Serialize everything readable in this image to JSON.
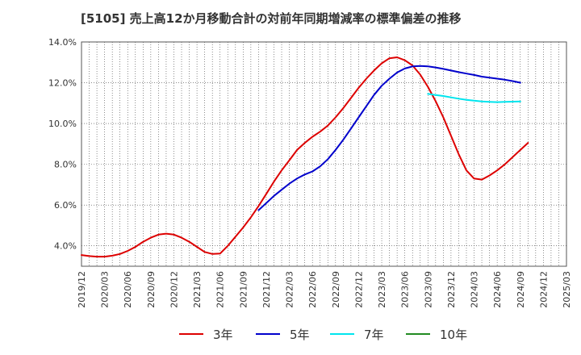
{
  "chart_data": {
    "type": "line",
    "title": "[5105]  売上高12か月移動合計の対前年同期増減率の標準偏差の推移",
    "xlabel": "",
    "ylabel": "",
    "y_tick_labels": [
      "4.0%",
      "6.0%",
      "8.0%",
      "10.0%",
      "12.0%",
      "14.0%"
    ],
    "y_ticks": [
      4,
      6,
      8,
      10,
      12,
      14
    ],
    "ylim": [
      3.0,
      14.0
    ],
    "x_tick_labels": [
      "2019/12",
      "2020/03",
      "2020/06",
      "2020/09",
      "2020/12",
      "2021/03",
      "2021/06",
      "2021/09",
      "2021/12",
      "2022/03",
      "2022/06",
      "2022/09",
      "2022/12",
      "2023/03",
      "2023/06",
      "2023/09",
      "2023/12",
      "2024/03",
      "2024/06",
      "2024/09",
      "2024/12",
      "2025/03"
    ],
    "x_range": [
      "2019/12",
      "2025/03"
    ],
    "grid": true,
    "legend_position": "bottom",
    "series": [
      {
        "name": "3年",
        "color": "#dd0000",
        "points": [
          [
            "2019/12",
            3.55
          ],
          [
            "2020/01",
            3.5
          ],
          [
            "2020/02",
            3.47
          ],
          [
            "2020/03",
            3.47
          ],
          [
            "2020/04",
            3.52
          ],
          [
            "2020/05",
            3.6
          ],
          [
            "2020/06",
            3.75
          ],
          [
            "2020/07",
            3.95
          ],
          [
            "2020/08",
            4.2
          ],
          [
            "2020/09",
            4.4
          ],
          [
            "2020/10",
            4.55
          ],
          [
            "2020/11",
            4.6
          ],
          [
            "2020/12",
            4.55
          ],
          [
            "2021/01",
            4.4
          ],
          [
            "2021/02",
            4.2
          ],
          [
            "2021/03",
            3.95
          ],
          [
            "2021/04",
            3.7
          ],
          [
            "2021/05",
            3.6
          ],
          [
            "2021/06",
            3.62
          ],
          [
            "2021/07",
            4.0
          ],
          [
            "2021/08",
            4.45
          ],
          [
            "2021/09",
            4.9
          ],
          [
            "2021/10",
            5.4
          ],
          [
            "2021/11",
            5.95
          ],
          [
            "2021/12",
            6.55
          ],
          [
            "2022/01",
            7.15
          ],
          [
            "2022/02",
            7.7
          ],
          [
            "2022/03",
            8.2
          ],
          [
            "2022/04",
            8.7
          ],
          [
            "2022/05",
            9.05
          ],
          [
            "2022/06",
            9.35
          ],
          [
            "2022/07",
            9.6
          ],
          [
            "2022/08",
            9.9
          ],
          [
            "2022/09",
            10.3
          ],
          [
            "2022/10",
            10.75
          ],
          [
            "2022/11",
            11.25
          ],
          [
            "2022/12",
            11.75
          ],
          [
            "2023/01",
            12.2
          ],
          [
            "2023/02",
            12.6
          ],
          [
            "2023/03",
            12.95
          ],
          [
            "2023/04",
            13.2
          ],
          [
            "2023/05",
            13.25
          ],
          [
            "2023/06",
            13.1
          ],
          [
            "2023/07",
            12.85
          ],
          [
            "2023/08",
            12.4
          ],
          [
            "2023/09",
            11.8
          ],
          [
            "2023/10",
            11.1
          ],
          [
            "2023/11",
            10.3
          ],
          [
            "2023/12",
            9.4
          ],
          [
            "2024/01",
            8.5
          ],
          [
            "2024/02",
            7.7
          ],
          [
            "2024/03",
            7.3
          ],
          [
            "2024/04",
            7.25
          ],
          [
            "2024/05",
            7.45
          ],
          [
            "2024/06",
            7.7
          ],
          [
            "2024/07",
            8.0
          ],
          [
            "2024/08",
            8.35
          ],
          [
            "2024/09",
            8.7
          ],
          [
            "2024/10",
            9.05
          ]
        ]
      },
      {
        "name": "5年",
        "color": "#0000cc",
        "points": [
          [
            "2021/11",
            5.75
          ],
          [
            "2021/12",
            6.1
          ],
          [
            "2022/01",
            6.45
          ],
          [
            "2022/02",
            6.75
          ],
          [
            "2022/03",
            7.05
          ],
          [
            "2022/04",
            7.3
          ],
          [
            "2022/05",
            7.5
          ],
          [
            "2022/06",
            7.65
          ],
          [
            "2022/07",
            7.9
          ],
          [
            "2022/08",
            8.25
          ],
          [
            "2022/09",
            8.7
          ],
          [
            "2022/10",
            9.2
          ],
          [
            "2022/11",
            9.75
          ],
          [
            "2022/12",
            10.3
          ],
          [
            "2023/01",
            10.85
          ],
          [
            "2023/02",
            11.4
          ],
          [
            "2023/03",
            11.85
          ],
          [
            "2023/04",
            12.2
          ],
          [
            "2023/05",
            12.5
          ],
          [
            "2023/06",
            12.7
          ],
          [
            "2023/07",
            12.8
          ],
          [
            "2023/08",
            12.82
          ],
          [
            "2023/09",
            12.8
          ],
          [
            "2023/10",
            12.75
          ],
          [
            "2023/11",
            12.68
          ],
          [
            "2023/12",
            12.6
          ],
          [
            "2024/01",
            12.52
          ],
          [
            "2024/02",
            12.45
          ],
          [
            "2024/03",
            12.38
          ],
          [
            "2024/04",
            12.3
          ],
          [
            "2024/05",
            12.25
          ],
          [
            "2024/06",
            12.2
          ],
          [
            "2024/07",
            12.15
          ],
          [
            "2024/08",
            12.08
          ],
          [
            "2024/09",
            12.0
          ]
        ]
      },
      {
        "name": "7年",
        "color": "#00e5ee",
        "points": [
          [
            "2023/09",
            11.45
          ],
          [
            "2023/10",
            11.4
          ],
          [
            "2023/11",
            11.35
          ],
          [
            "2023/12",
            11.28
          ],
          [
            "2024/01",
            11.22
          ],
          [
            "2024/02",
            11.16
          ],
          [
            "2024/03",
            11.12
          ],
          [
            "2024/04",
            11.08
          ],
          [
            "2024/05",
            11.06
          ],
          [
            "2024/06",
            11.05
          ],
          [
            "2024/07",
            11.06
          ],
          [
            "2024/08",
            11.07
          ],
          [
            "2024/09",
            11.08
          ]
        ]
      },
      {
        "name": "10年",
        "color": "#228b22",
        "points": []
      }
    ]
  }
}
